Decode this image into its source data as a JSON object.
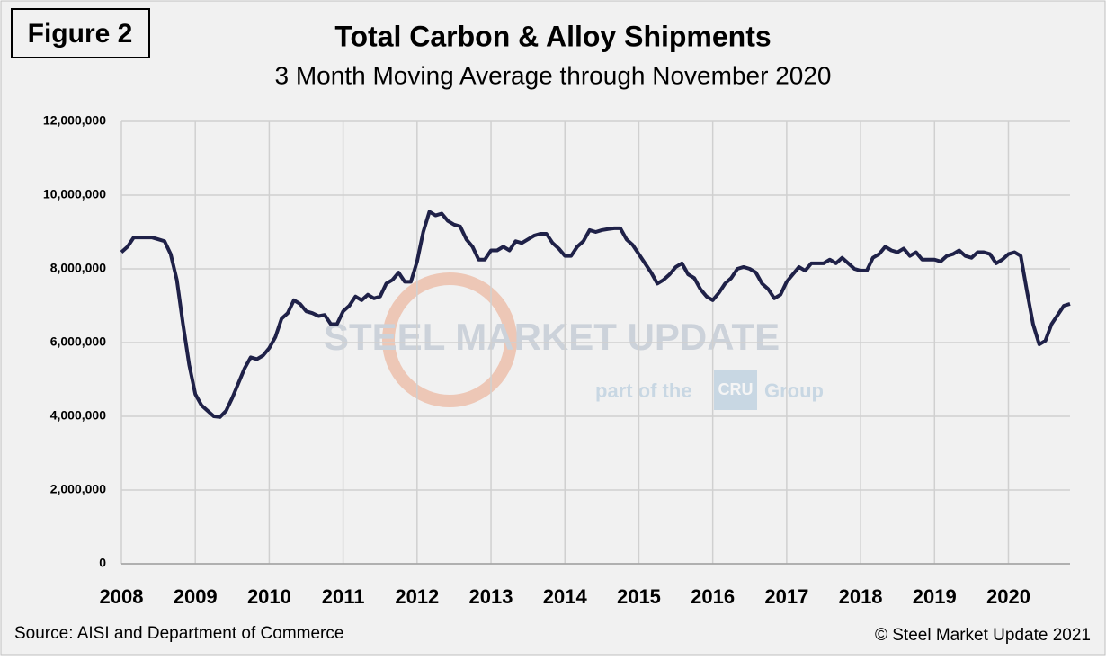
{
  "chart_data": {
    "type": "line",
    "figure_label": "Figure 2",
    "title": "Total Carbon & Alloy Shipments",
    "subtitle": "3 Month Moving Average through November 2020",
    "source": "Source: AISI and Department of Commerce",
    "copyright": "© Steel Market Update 2021",
    "watermark": [
      "STEEL MARKET UPDATE",
      "part of the",
      "CRU",
      "Group"
    ],
    "categories": [
      "2008",
      null,
      null,
      null,
      null,
      null,
      null,
      null,
      null,
      null,
      null,
      null,
      "2009",
      null,
      null,
      null,
      null,
      null,
      null,
      null,
      null,
      null,
      null,
      null,
      "2010",
      null,
      null,
      null,
      null,
      null,
      null,
      null,
      null,
      null,
      null,
      null,
      "2011",
      null,
      null,
      null,
      null,
      null,
      null,
      null,
      null,
      null,
      null,
      null,
      "2012",
      null,
      null,
      null,
      null,
      null,
      null,
      null,
      null,
      null,
      null,
      null,
      "2013",
      null,
      null,
      null,
      null,
      null,
      null,
      null,
      null,
      null,
      null,
      null,
      "2014",
      null,
      null,
      null,
      null,
      null,
      null,
      null,
      null,
      null,
      null,
      null,
      "2015",
      null,
      null,
      null,
      null,
      null,
      null,
      null,
      null,
      null,
      null,
      null,
      "2016",
      null,
      null,
      null,
      null,
      null,
      null,
      null,
      null,
      null,
      null,
      null,
      "2017",
      null,
      null,
      null,
      null,
      null,
      null,
      null,
      null,
      null,
      null,
      null,
      "2018",
      null,
      null,
      null,
      null,
      null,
      null,
      null,
      null,
      null,
      null,
      null,
      "2019",
      null,
      null,
      null,
      null,
      null,
      null,
      null,
      null,
      null,
      null,
      null,
      "2020",
      null,
      null,
      null,
      null,
      null,
      null,
      null,
      null,
      null,
      null
    ],
    "series": [
      {
        "color": "#1f2148",
        "values": [
          8450000,
          8600000,
          8850000,
          8850000,
          8850000,
          8850000,
          8800000,
          8750000,
          8400000,
          7700000,
          6500000,
          5400000,
          4600000,
          4300000,
          4150000,
          4000000,
          3980000,
          4150000,
          4500000,
          4900000,
          5300000,
          5600000,
          5550000,
          5650000,
          5850000,
          6150000,
          6650000,
          6800000,
          7150000,
          7050000,
          6850000,
          6800000,
          6720000,
          6750000,
          6500000,
          6500000,
          6850000,
          7000000,
          7250000,
          7150000,
          7300000,
          7200000,
          7250000,
          7600000,
          7700000,
          7900000,
          7650000,
          7650000,
          8200000,
          9000000,
          9550000,
          9450000,
          9500000,
          9300000,
          9200000,
          9150000,
          8800000,
          8600000,
          8250000,
          8250000,
          8500000,
          8500000,
          8600000,
          8500000,
          8750000,
          8700000,
          8800000,
          8900000,
          8950000,
          8950000,
          8700000,
          8550000,
          8350000,
          8350000,
          8600000,
          8750000,
          9050000,
          9000000,
          9050000,
          9080000,
          9100000,
          9100000,
          8800000,
          8650000,
          8400000,
          8150000,
          7900000,
          7600000,
          7700000,
          7850000,
          8050000,
          8150000,
          7850000,
          7750000,
          7450000,
          7250000,
          7150000,
          7350000,
          7600000,
          7750000,
          8000000,
          8050000,
          8000000,
          7900000,
          7600000,
          7450000,
          7200000,
          7300000,
          7650000,
          7850000,
          8050000,
          7950000,
          8150000,
          8150000,
          8150000,
          8250000,
          8150000,
          8300000,
          8150000,
          8000000,
          7950000,
          7950000,
          8300000,
          8400000,
          8600000,
          8500000,
          8450000,
          8550000,
          8350000,
          8450000,
          8250000,
          8250000,
          8250000,
          8200000,
          8350000,
          8400000,
          8500000,
          8350000,
          8300000,
          8450000,
          8450000,
          8400000,
          8150000,
          8250000,
          8400000,
          8450000,
          8350000,
          7400000,
          6500000,
          5950000,
          6050000,
          6500000,
          6750000,
          7000000,
          7050000
        ]
      }
    ],
    "ylim": [
      0,
      12000000
    ],
    "yticks": [
      0,
      {
        "value": 2000000,
        "label": "2,000,000"
      },
      {
        "value": 4000000,
        "label": "4,000,000"
      },
      {
        "value": 6000000,
        "label": "6,000,000"
      },
      {
        "value": 8000000,
        "label": "8,000,000"
      },
      {
        "value": 10000000,
        "label": "10,000,000"
      },
      {
        "value": 12000000,
        "label": "12,000,000"
      }
    ],
    "grid": true
  }
}
